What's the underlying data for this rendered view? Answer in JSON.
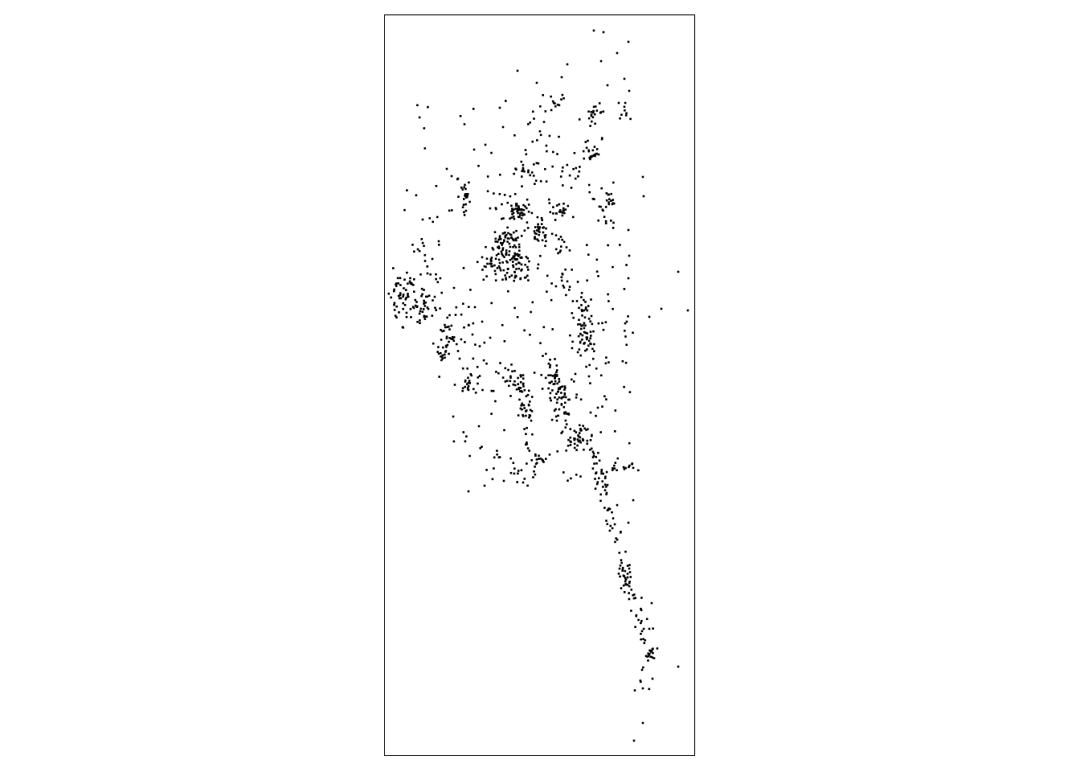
{
  "map": {
    "kind": "point-distribution-map",
    "background_color": "#ffffff",
    "frame_color": "#000000",
    "point_color": "#000000",
    "point_marker": "square",
    "tick_labels": [],
    "legend": null,
    "title": ""
  }
}
